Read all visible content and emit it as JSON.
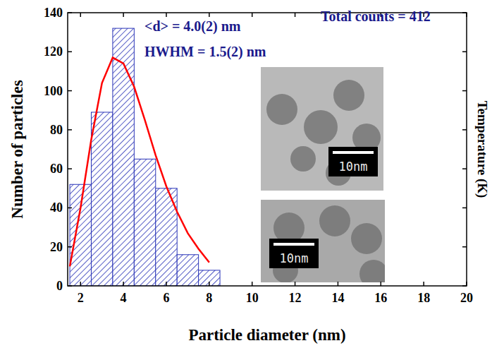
{
  "chart_data": {
    "type": "histogram",
    "x_label": "Particle diameter (nm)",
    "y_label": "Number of particles",
    "y2_label": "Temperature (K)",
    "bins": [
      1.5,
      2.5,
      3.5,
      4.5,
      5.5,
      6.5,
      7.5,
      8.5
    ],
    "values": [
      52,
      89,
      132,
      65,
      50,
      16,
      8
    ],
    "color": "#2b35b8",
    "series": [
      {
        "type": "line",
        "color": "#ff0000",
        "x": [
          1.5,
          2,
          2.5,
          3,
          3.5,
          4,
          4.5,
          5,
          5.5,
          6,
          6.5,
          7,
          7.5,
          8
        ],
        "values": [
          10,
          40,
          75,
          104,
          117,
          114,
          102,
          85,
          67,
          51,
          38,
          27,
          19,
          12
        ]
      }
    ],
    "xlim": [
      1.4,
      20
    ],
    "xticks": [
      2,
      4,
      6,
      8,
      10,
      12,
      14,
      16,
      18,
      20
    ],
    "ylim": [
      0,
      140
    ],
    "yticks": [
      0,
      20,
      40,
      60,
      80,
      100,
      120,
      140
    ],
    "annotations": [
      "<d> = 4.0(2) nm",
      "HWHM = 1.5(2) nm",
      "Total counts = 412"
    ],
    "annotation_color": "#1a1a8c",
    "inset_labels": [
      "10nm",
      "10nm"
    ]
  }
}
